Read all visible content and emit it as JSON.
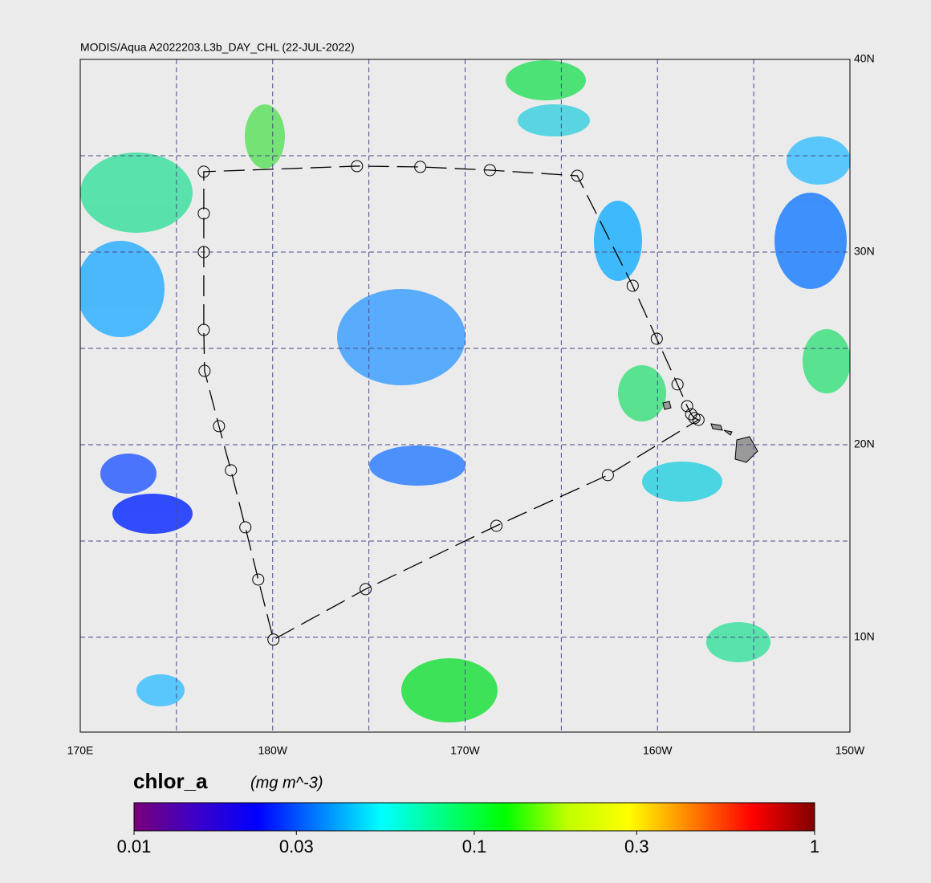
{
  "map": {
    "title": "MODIS/Aqua A2022203.L3b_DAY_CHL (22-JUL-2022)",
    "xlim": [
      170,
      210
    ],
    "ylim": [
      5.08,
      40
    ],
    "xticks": [
      {
        "value": 170,
        "label": "170E"
      },
      {
        "value": 180,
        "label": "180W"
      },
      {
        "value": 190,
        "label": "170W"
      },
      {
        "value": 200,
        "label": "160W"
      },
      {
        "value": 210,
        "label": "150W"
      }
    ],
    "yticks": [
      {
        "value": 10,
        "label": "10N"
      },
      {
        "value": 20,
        "label": "20N"
      },
      {
        "value": 30,
        "label": "30N"
      },
      {
        "value": 40,
        "label": "40N"
      }
    ],
    "xgrid": [
      175,
      180,
      185,
      190,
      195,
      200,
      205
    ],
    "ygrid": [
      10,
      15,
      20,
      25,
      30,
      35
    ],
    "track": [
      {
        "lon": 202.13,
        "lat": 21.29
      },
      {
        "lon": 201.92,
        "lat": 21.38
      },
      {
        "lon": 201.75,
        "lat": 21.58
      },
      {
        "lon": 201.54,
        "lat": 22.0
      },
      {
        "lon": 201.04,
        "lat": 23.13
      },
      {
        "lon": 199.96,
        "lat": 25.5
      },
      {
        "lon": 198.71,
        "lat": 28.25
      },
      {
        "lon": 195.83,
        "lat": 33.96
      },
      {
        "lon": 191.29,
        "lat": 34.25
      },
      {
        "lon": 187.67,
        "lat": 34.42
      },
      {
        "lon": 184.38,
        "lat": 34.46
      },
      {
        "lon": 176.42,
        "lat": 34.17
      },
      {
        "lon": 176.42,
        "lat": 32.0
      },
      {
        "lon": 176.42,
        "lat": 30.0
      },
      {
        "lon": 176.42,
        "lat": 25.96
      },
      {
        "lon": 176.46,
        "lat": 23.83
      },
      {
        "lon": 177.21,
        "lat": 20.96
      },
      {
        "lon": 177.83,
        "lat": 18.67
      },
      {
        "lon": 178.58,
        "lat": 15.71
      },
      {
        "lon": 179.25,
        "lat": 13.0
      },
      {
        "lon": 180.04,
        "lat": 9.88
      },
      {
        "lon": 184.83,
        "lat": 12.5
      },
      {
        "lon": 191.63,
        "lat": 15.79
      },
      {
        "lon": 197.42,
        "lat": 18.42
      }
    ],
    "colorbar": {
      "title": "chlor_a",
      "units": "(mg m^-3)",
      "lim": [
        0.01,
        1
      ],
      "ticks": [
        0.01,
        0.03,
        0.1,
        0.3,
        1
      ],
      "log": true,
      "colormap": [
        "#780078",
        "#3c00c8",
        "#0000ff",
        "#0080ff",
        "#00ffff",
        "#00ff80",
        "#00ff00",
        "#c0ff00",
        "#ffff00",
        "#ff8000",
        "#ff0000",
        "#800000"
      ]
    }
  }
}
